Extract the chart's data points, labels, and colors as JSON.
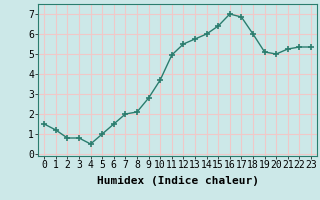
{
  "x": [
    0,
    1,
    2,
    3,
    4,
    5,
    6,
    7,
    8,
    9,
    10,
    11,
    12,
    13,
    14,
    15,
    16,
    17,
    18,
    19,
    20,
    21,
    22,
    23
  ],
  "y": [
    1.5,
    1.2,
    0.8,
    0.8,
    0.5,
    1.0,
    1.5,
    2.0,
    2.1,
    2.8,
    3.7,
    4.95,
    5.5,
    5.75,
    6.0,
    6.4,
    7.0,
    6.85,
    6.0,
    5.1,
    5.0,
    5.25,
    5.35,
    5.35
  ],
  "xlabel": "Humidex (Indice chaleur)",
  "ylim": [
    -0.1,
    7.5
  ],
  "xlim": [
    -0.5,
    23.5
  ],
  "yticks": [
    0,
    1,
    2,
    3,
    4,
    5,
    6,
    7
  ],
  "xticks": [
    0,
    1,
    2,
    3,
    4,
    5,
    6,
    7,
    8,
    9,
    10,
    11,
    12,
    13,
    14,
    15,
    16,
    17,
    18,
    19,
    20,
    21,
    22,
    23
  ],
  "line_color": "#2a7d6e",
  "marker": "+",
  "marker_size": 4,
  "bg_color": "#cce8e8",
  "grid_color": "#f0c8c8",
  "xlabel_fontsize": 8,
  "tick_fontsize": 7
}
